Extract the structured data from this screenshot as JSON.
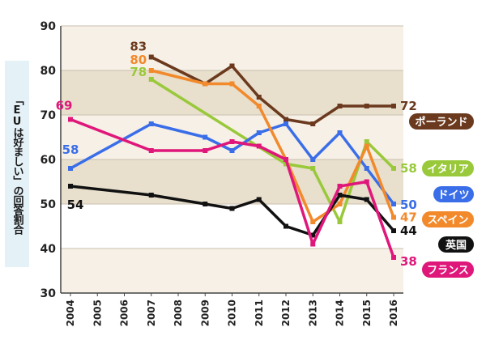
{
  "chart_data": {
    "type": "line",
    "ylabel": "「EUは好ましい」の回答割合",
    "ylim": [
      30,
      90
    ],
    "yticks": [
      30,
      40,
      50,
      60,
      70,
      80,
      90
    ],
    "x": [
      2004,
      2005,
      2006,
      2007,
      2008,
      2009,
      2010,
      2011,
      2012,
      2013,
      2014,
      2015,
      2016
    ],
    "grid": true,
    "band_colors": [
      "#ffffff",
      "#e8dfcd",
      "#f7f0e7"
    ],
    "series": [
      {
        "name": "ポーランド",
        "color": "#6b3a1e",
        "points": [
          [
            2007,
            83
          ],
          [
            2009,
            77
          ],
          [
            2010,
            81
          ],
          [
            2011,
            74
          ],
          [
            2012,
            69
          ],
          [
            2013,
            68
          ],
          [
            2014,
            72
          ],
          [
            2015,
            72
          ],
          [
            2016,
            72
          ]
        ],
        "labels": [
          {
            "year": 2007,
            "text": "83"
          },
          {
            "year": 2016,
            "text": "72"
          }
        ]
      },
      {
        "name": "イタリア",
        "color": "#99c93a",
        "points": [
          [
            2007,
            78
          ],
          [
            2012,
            59
          ],
          [
            2013,
            58
          ],
          [
            2014,
            46
          ],
          [
            2015,
            64
          ],
          [
            2016,
            58
          ]
        ],
        "labels": [
          {
            "year": 2007,
            "text": "78"
          },
          {
            "year": 2016,
            "text": "58"
          }
        ]
      },
      {
        "name": "ドイツ",
        "color": "#3a6ee8",
        "points": [
          [
            2004,
            58
          ],
          [
            2007,
            68
          ],
          [
            2009,
            65
          ],
          [
            2010,
            62
          ],
          [
            2011,
            66
          ],
          [
            2012,
            68
          ],
          [
            2013,
            60
          ],
          [
            2014,
            66
          ],
          [
            2015,
            58
          ],
          [
            2016,
            50
          ]
        ],
        "labels": [
          {
            "year": 2004,
            "text": "58"
          },
          {
            "year": 2016,
            "text": "50"
          }
        ]
      },
      {
        "name": "スペイン",
        "color": "#f2892b",
        "points": [
          [
            2007,
            80
          ],
          [
            2009,
            77
          ],
          [
            2010,
            77
          ],
          [
            2011,
            72
          ],
          [
            2012,
            60
          ],
          [
            2013,
            46
          ],
          [
            2014,
            50
          ],
          [
            2015,
            63
          ],
          [
            2016,
            47
          ]
        ],
        "labels": [
          {
            "year": 2007,
            "text": "80"
          },
          {
            "year": 2016,
            "text": "47"
          }
        ]
      },
      {
        "name": "英国",
        "color": "#111111",
        "points": [
          [
            2004,
            54
          ],
          [
            2007,
            52
          ],
          [
            2009,
            50
          ],
          [
            2010,
            49
          ],
          [
            2011,
            51
          ],
          [
            2012,
            45
          ],
          [
            2013,
            43
          ],
          [
            2014,
            52
          ],
          [
            2015,
            51
          ],
          [
            2016,
            44
          ]
        ],
        "labels": [
          {
            "year": 2004,
            "text": "54"
          },
          {
            "year": 2016,
            "text": "44"
          }
        ]
      },
      {
        "name": "フランス",
        "color": "#e0177a",
        "points": [
          [
            2004,
            69
          ],
          [
            2007,
            62
          ],
          [
            2009,
            62
          ],
          [
            2010,
            64
          ],
          [
            2011,
            63
          ],
          [
            2012,
            60
          ],
          [
            2013,
            41
          ],
          [
            2014,
            54
          ],
          [
            2015,
            55
          ],
          [
            2016,
            38
          ]
        ],
        "labels": [
          {
            "year": 2004,
            "text": "69"
          },
          {
            "year": 2016,
            "text": "38"
          }
        ]
      }
    ]
  }
}
